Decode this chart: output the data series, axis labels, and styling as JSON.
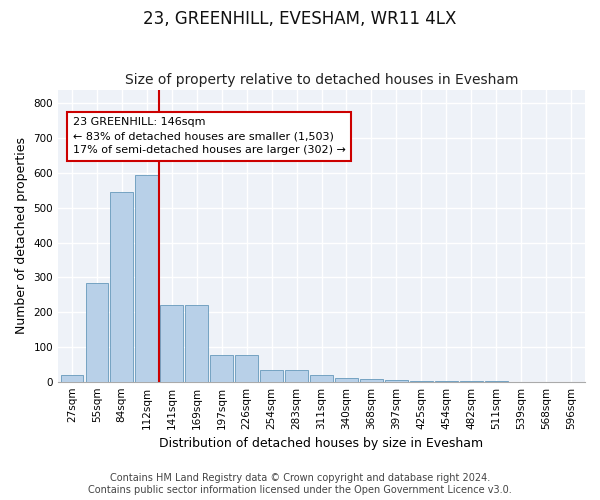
{
  "title": "23, GREENHILL, EVESHAM, WR11 4LX",
  "subtitle": "Size of property relative to detached houses in Evesham",
  "xlabel": "Distribution of detached houses by size in Evesham",
  "ylabel": "Number of detached properties",
  "categories": [
    "27sqm",
    "55sqm",
    "84sqm",
    "112sqm",
    "141sqm",
    "169sqm",
    "197sqm",
    "226sqm",
    "254sqm",
    "283sqm",
    "311sqm",
    "340sqm",
    "368sqm",
    "397sqm",
    "425sqm",
    "454sqm",
    "482sqm",
    "511sqm",
    "539sqm",
    "568sqm",
    "596sqm"
  ],
  "values": [
    20,
    285,
    545,
    595,
    220,
    220,
    78,
    78,
    33,
    33,
    20,
    10,
    8,
    5,
    3,
    2,
    1,
    1,
    0,
    0,
    0
  ],
  "bar_color": "#b8d0e8",
  "bar_edge_color": "#6699bb",
  "vline_color": "#cc0000",
  "annotation_box_color": "#ffffff",
  "annotation_box_edge": "#cc0000",
  "marker_label": "23 GREENHILL: 146sqm",
  "annotation_line1": "← 83% of detached houses are smaller (1,503)",
  "annotation_line2": "17% of semi-detached houses are larger (302) →",
  "ylim": [
    0,
    840
  ],
  "yticks": [
    0,
    100,
    200,
    300,
    400,
    500,
    600,
    700,
    800
  ],
  "footer1": "Contains HM Land Registry data © Crown copyright and database right 2024.",
  "footer2": "Contains public sector information licensed under the Open Government Licence v3.0.",
  "bg_color": "#eef2f8",
  "grid_color": "#ffffff",
  "fig_bg_color": "#ffffff",
  "title_fontsize": 12,
  "subtitle_fontsize": 10,
  "axis_label_fontsize": 9,
  "tick_fontsize": 7.5,
  "footer_fontsize": 7,
  "vline_x_index": 4
}
